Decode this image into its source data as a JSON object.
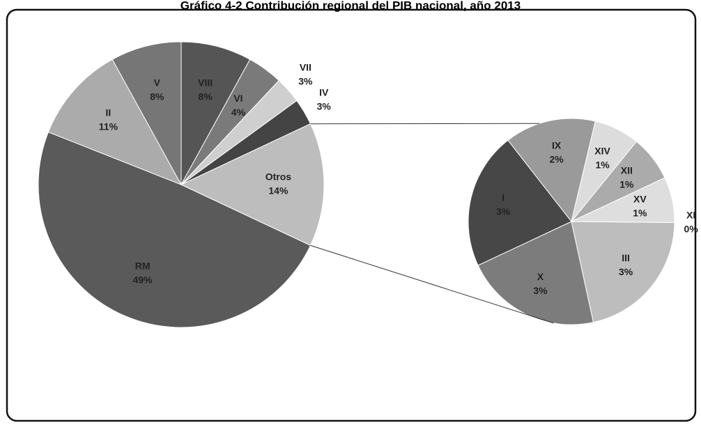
{
  "chart_data": [
    {
      "type": "pie",
      "title": "Gráfico 4-2 Contribución regional del PIB nacional, año 2013",
      "categories": [
        "VIII",
        "VI",
        "VII",
        "IV",
        "Otros",
        "RM",
        "II",
        "V"
      ],
      "values": [
        8,
        4,
        3,
        3,
        14,
        49,
        11,
        8
      ],
      "value_labels": [
        "8%",
        "4%",
        "3%",
        "3%",
        "14%",
        "49%",
        "11%",
        "8%"
      ],
      "colors": [
        "#555555",
        "#7a7a7a",
        "#cfcfcf",
        "#444444",
        "#bdbdbd",
        "#5a5a5a",
        "#ababab",
        "#767676"
      ]
    },
    {
      "type": "pie",
      "categories": [
        "IX",
        "XIV",
        "XII",
        "XV",
        "XI",
        "III",
        "X",
        "I"
      ],
      "values": [
        2,
        1,
        1,
        1,
        0,
        3,
        3,
        3
      ],
      "value_labels": [
        "2%",
        "1%",
        "1%",
        "1%",
        "0%",
        "3%",
        "3%",
        "3%"
      ],
      "colors": [
        "#9a9a9a",
        "#dcdcdc",
        "#ababab",
        "#dedede",
        "#bcbcbc",
        "#bdbdbd",
        "#7c7c7c",
        "#474747"
      ]
    }
  ]
}
